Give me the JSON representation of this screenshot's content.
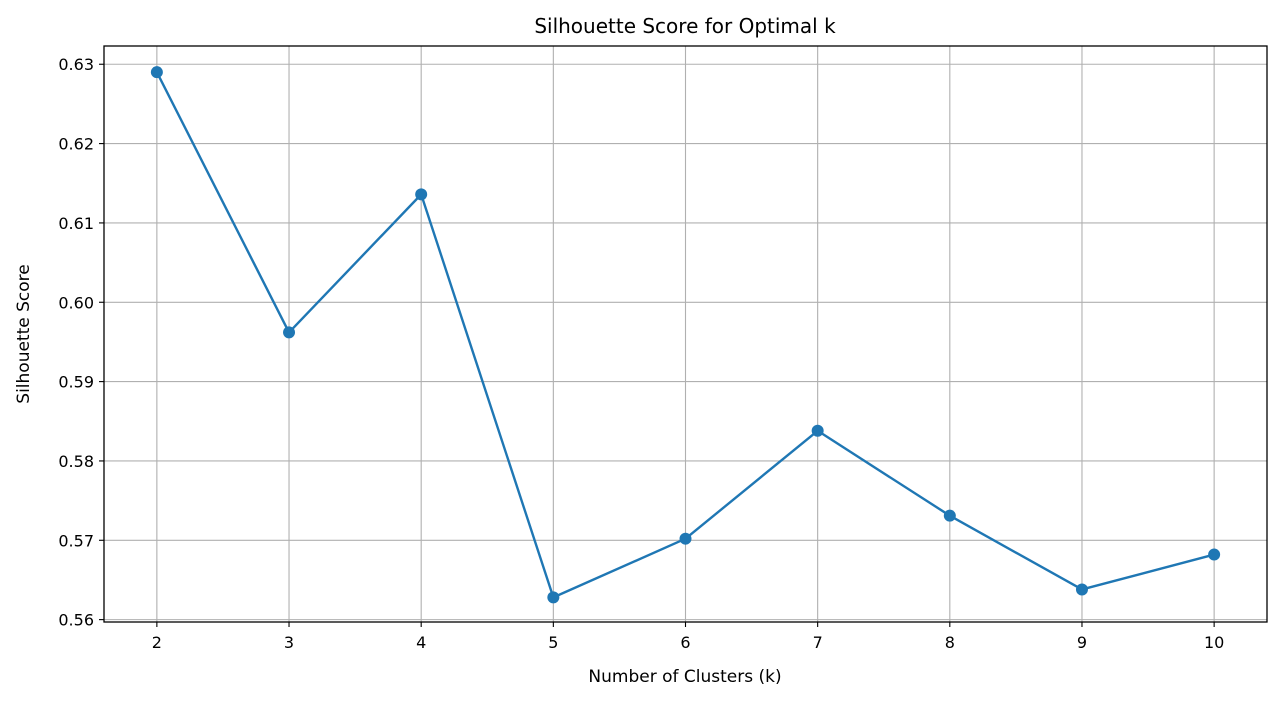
{
  "chart_data": {
    "type": "line",
    "title": "Silhouette Score for Optimal k",
    "xlabel": "Number of Clusters (k)",
    "ylabel": "Silhouette Score",
    "x": [
      2,
      3,
      4,
      5,
      6,
      7,
      8,
      9,
      10
    ],
    "series": [
      {
        "values": [
          0.629,
          0.5962,
          0.6136,
          0.5628,
          0.5702,
          0.5838,
          0.5731,
          0.5638,
          0.5682
        ],
        "color": "#1f77b4",
        "marker": "circle"
      }
    ],
    "xticks": [
      "2",
      "3",
      "4",
      "5",
      "6",
      "7",
      "8",
      "9",
      "10"
    ],
    "yticks": [
      "0.56",
      "0.57",
      "0.58",
      "0.59",
      "0.60",
      "0.61",
      "0.62",
      "0.63"
    ],
    "ytick_values": [
      0.56,
      0.57,
      0.58,
      0.59,
      0.6,
      0.61,
      0.62,
      0.63
    ],
    "xlim": [
      1.6,
      10.4
    ],
    "ylim": [
      0.5597,
      0.6323
    ],
    "grid": true,
    "grid_color": "#b0b0b0",
    "axes_color": "#000000"
  }
}
